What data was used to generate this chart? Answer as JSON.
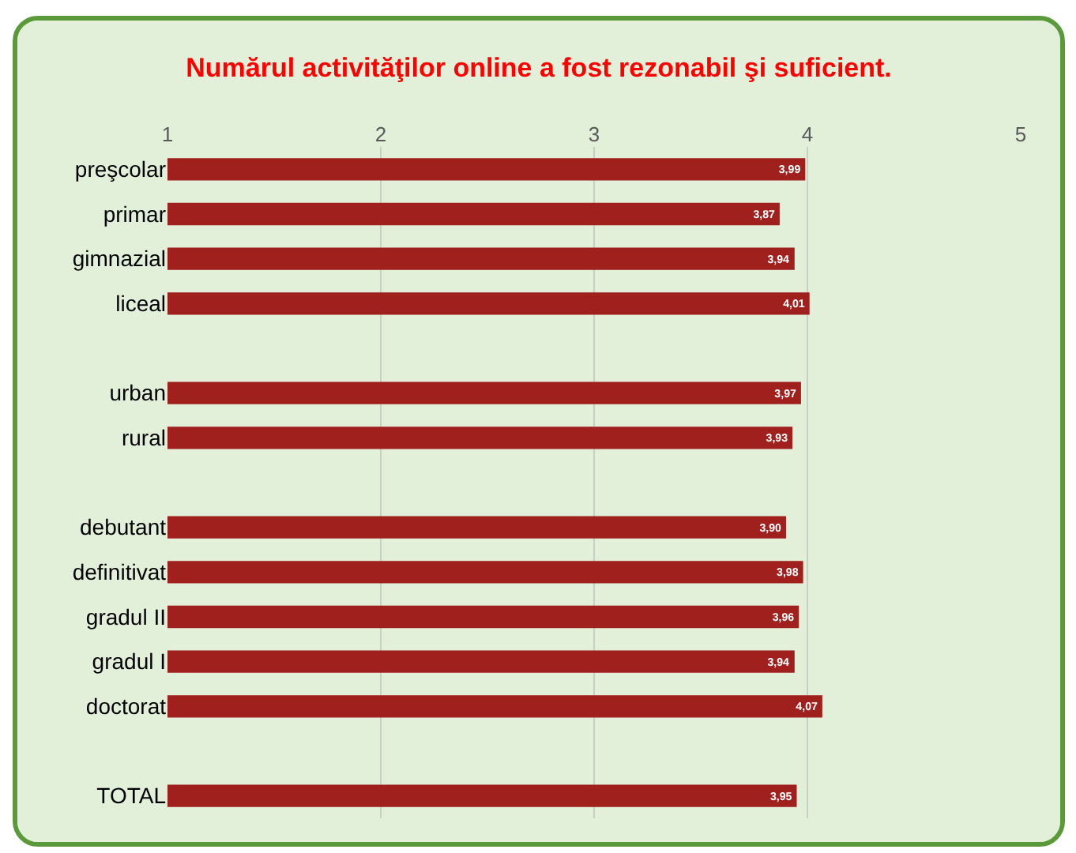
{
  "chart_data": {
    "type": "bar",
    "orientation": "horizontal",
    "title": "Numărul activităţilor online a fost rezonabil şi suficient.",
    "categories": [
      "preşcolar",
      "primar",
      "gimnazial",
      "liceal",
      null,
      "urban",
      "rural",
      null,
      "debutant",
      "definitivat",
      "gradul II",
      "gradul I",
      "doctorat",
      null,
      "TOTAL"
    ],
    "values": [
      3.99,
      3.87,
      3.94,
      4.01,
      null,
      3.97,
      3.93,
      null,
      3.9,
      3.98,
      3.96,
      3.94,
      4.07,
      null,
      3.95
    ],
    "value_labels": [
      "3,99",
      "3,87",
      "3,94",
      "4,01",
      null,
      "3,97",
      "3,93",
      null,
      "3,90",
      "3,98",
      "3,96",
      "3,94",
      "4,07",
      null,
      "3,95"
    ],
    "color": "#a0201e",
    "xlim": [
      1,
      5
    ],
    "xticks": [
      1,
      2,
      3,
      4,
      5
    ],
    "grid": "x",
    "legend": false
  }
}
